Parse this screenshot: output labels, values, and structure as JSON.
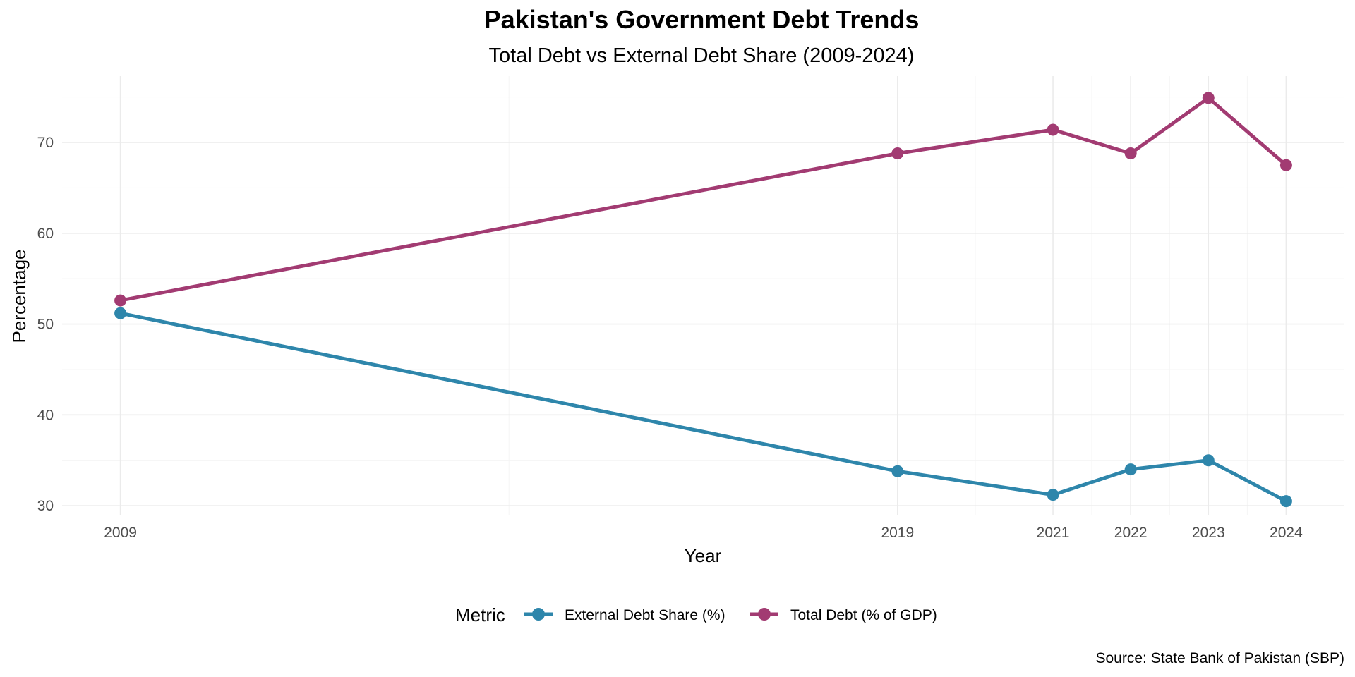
{
  "chart_data": {
    "type": "line",
    "title": "Pakistan's Government Debt Trends",
    "subtitle": "Total Debt vs External Debt Share (2009-2024)",
    "xlabel": "Year",
    "ylabel": "Percentage",
    "caption": "Source: State Bank of Pakistan (SBP)",
    "x": [
      2009,
      2019,
      2021,
      2022,
      2023,
      2024
    ],
    "x_tick_labels": [
      "2009",
      "2019",
      "2021",
      "2022",
      "2023",
      "2024"
    ],
    "y_ticks": [
      30,
      40,
      50,
      60,
      70
    ],
    "y_tick_labels": [
      "30",
      "40",
      "50",
      "60",
      "70"
    ],
    "xlim": [
      2008.25,
      2024.75
    ],
    "ylim": [
      29.0,
      77.3
    ],
    "grid": true,
    "legend": {
      "title": "Metric",
      "placement": "bottom"
    },
    "series": [
      {
        "name": "External Debt Share (%)",
        "color": "#2E86AB",
        "values": [
          51.2,
          33.8,
          31.2,
          34.0,
          35.0,
          30.5
        ]
      },
      {
        "name": "Total Debt (% of GDP)",
        "color": "#A23B72",
        "values": [
          52.6,
          68.8,
          71.4,
          68.8,
          74.9,
          67.5
        ]
      }
    ]
  }
}
